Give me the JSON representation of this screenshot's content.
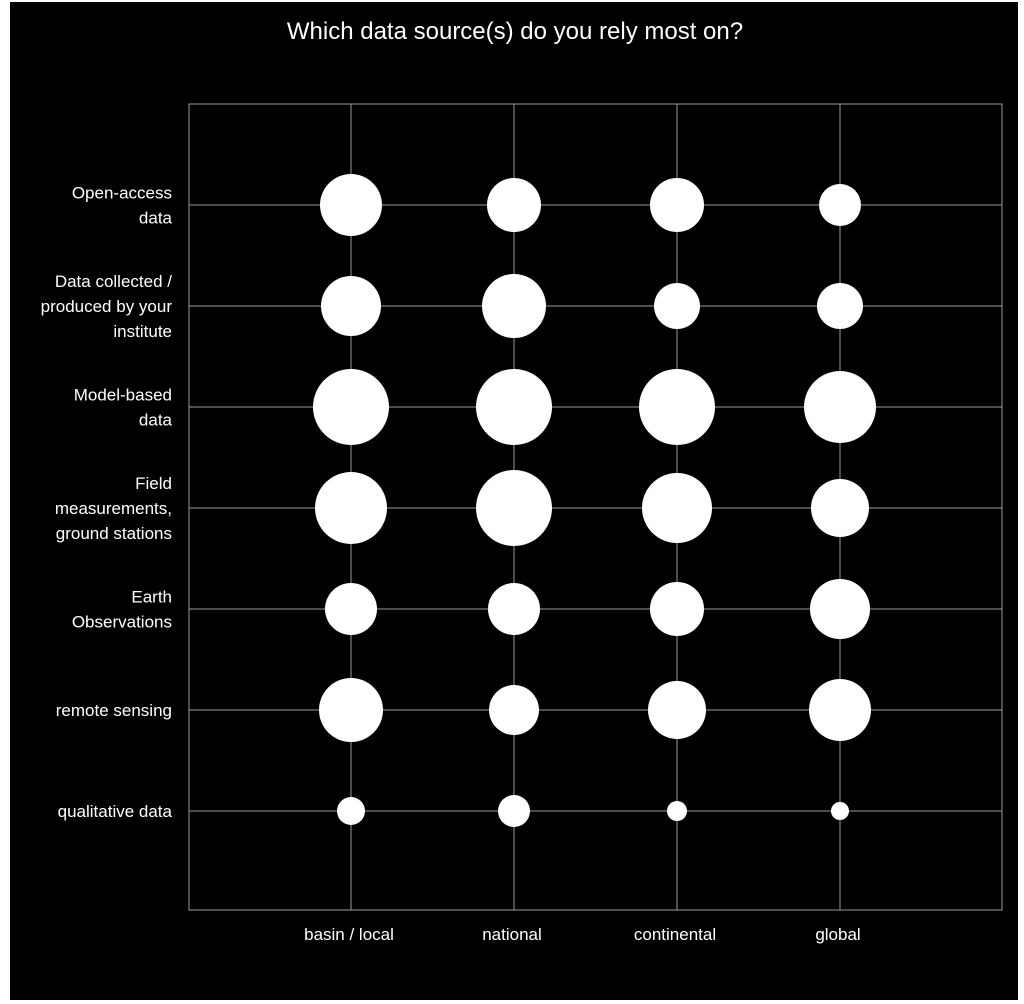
{
  "chart_data": {
    "type": "scatter",
    "title": "Which data source(s) do you rely most on?",
    "xlabel": "",
    "ylabel": "",
    "x_categories": [
      "basin / local",
      "national",
      "continental",
      "global"
    ],
    "y_categories": [
      [
        "Open-access",
        "data"
      ],
      [
        "Data collected /",
        "produced by your",
        "institute"
      ],
      [
        "Model-based",
        "data"
      ],
      [
        "Field",
        "measurements,",
        "ground stations"
      ],
      [
        "Earth",
        "Observations"
      ],
      [
        "remote sensing"
      ],
      [
        "qualitative data"
      ]
    ],
    "values": [
      [
        31,
        27,
        27,
        21
      ],
      [
        30,
        32,
        23,
        23
      ],
      [
        38,
        38,
        38,
        36
      ],
      [
        36,
        38,
        35,
        29
      ],
      [
        26,
        26,
        27,
        30
      ],
      [
        32,
        25,
        29,
        31
      ],
      [
        14,
        16,
        10,
        9
      ]
    ],
    "value_note": "relative bubble size",
    "grid": true,
    "colors": {
      "background": "#000000",
      "bubble": "#ffffff",
      "grid": "#9a9a9a",
      "text": "#ffffff"
    }
  }
}
